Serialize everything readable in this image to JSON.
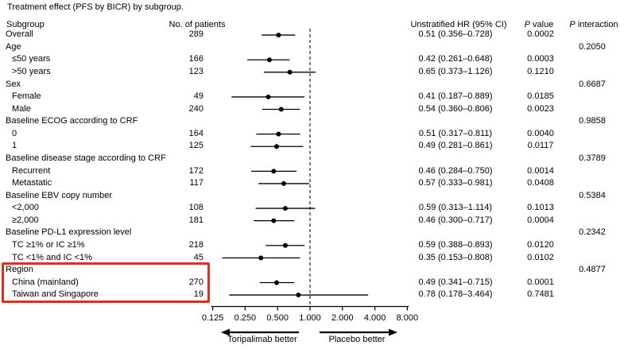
{
  "title": "Treatment effect (PFS by BICR) by subgroup.",
  "columns": {
    "subgroup": "Subgroup",
    "patients": "No. of patients",
    "hr": "Unstratified HR (95% CI)",
    "p_italic": "P",
    "p_value_rest": " value",
    "p_interaction_rest": " interaction"
  },
  "arrows": {
    "left_label": "Toripalimab better",
    "right_label": "Placebo better"
  },
  "highlight": {
    "color": "#e8291d",
    "rows": [
      "Region",
      "China (mainland)",
      "Taiwan and Singapore"
    ]
  },
  "chart_data": {
    "type": "forest",
    "x_scale": "log2",
    "x_ticks": [
      0.125,
      0.25,
      0.5,
      1,
      2,
      4,
      8
    ],
    "x_tick_labels": [
      "0.125",
      "0.250",
      "0.500",
      "1.000",
      "2.000",
      "4.000",
      "8.000"
    ],
    "reference_value": 1.0,
    "marker_color": "#000000",
    "rows": [
      {
        "label": "Overall",
        "indent": false,
        "patients": "289",
        "hr": 0.51,
        "ci_low": 0.356,
        "ci_high": 0.728,
        "hr_ci": "0.51 (0.356–0.728)",
        "p_value": "0.0002",
        "p_interaction": ""
      },
      {
        "label": "Age",
        "indent": false,
        "patients": "",
        "hr": null,
        "ci_low": null,
        "ci_high": null,
        "hr_ci": "",
        "p_value": "",
        "p_interaction": "0.2050"
      },
      {
        "label": "≤50 years",
        "indent": true,
        "patients": "166",
        "hr": 0.42,
        "ci_low": 0.261,
        "ci_high": 0.648,
        "hr_ci": "0.42 (0.261–0.648)",
        "p_value": "0.0003",
        "p_interaction": ""
      },
      {
        "label": ">50 years",
        "indent": true,
        "patients": "123",
        "hr": 0.65,
        "ci_low": 0.373,
        "ci_high": 1.126,
        "hr_ci": "0.65 (0.373–1.126)",
        "p_value": "0.1210",
        "p_interaction": ""
      },
      {
        "label": "Sex",
        "indent": false,
        "patients": "",
        "hr": null,
        "ci_low": null,
        "ci_high": null,
        "hr_ci": "",
        "p_value": "",
        "p_interaction": "0.6687"
      },
      {
        "label": "Female",
        "indent": true,
        "patients": "49",
        "hr": 0.41,
        "ci_low": 0.187,
        "ci_high": 0.889,
        "hr_ci": "0.41 (0.187–0.889)",
        "p_value": "0.0185",
        "p_interaction": ""
      },
      {
        "label": "Male",
        "indent": true,
        "patients": "240",
        "hr": 0.54,
        "ci_low": 0.36,
        "ci_high": 0.806,
        "hr_ci": "0.54 (0.360–0.806)",
        "p_value": "0.0023",
        "p_interaction": ""
      },
      {
        "label": "Baseline ECOG according to CRF",
        "indent": false,
        "patients": "",
        "hr": null,
        "ci_low": null,
        "ci_high": null,
        "hr_ci": "",
        "p_value": "",
        "p_interaction": "0.9858"
      },
      {
        "label": "0",
        "indent": true,
        "patients": "164",
        "hr": 0.51,
        "ci_low": 0.317,
        "ci_high": 0.811,
        "hr_ci": "0.51 (0.317–0.811)",
        "p_value": "0.0040",
        "p_interaction": ""
      },
      {
        "label": "1",
        "indent": true,
        "patients": "125",
        "hr": 0.49,
        "ci_low": 0.281,
        "ci_high": 0.861,
        "hr_ci": "0.49 (0.281–0.861)",
        "p_value": "0.0117",
        "p_interaction": ""
      },
      {
        "label": "Baseline disease stage according to CRF",
        "indent": false,
        "patients": "",
        "hr": null,
        "ci_low": null,
        "ci_high": null,
        "hr_ci": "",
        "p_value": "",
        "p_interaction": "0.3789"
      },
      {
        "label": "Recurrent",
        "indent": true,
        "patients": "172",
        "hr": 0.46,
        "ci_low": 0.284,
        "ci_high": 0.75,
        "hr_ci": "0.46 (0.284–0.750)",
        "p_value": "0.0014",
        "p_interaction": ""
      },
      {
        "label": "Metastatic",
        "indent": true,
        "patients": "117",
        "hr": 0.57,
        "ci_low": 0.333,
        "ci_high": 0.981,
        "hr_ci": "0.57 (0.333–0.981)",
        "p_value": "0.0408",
        "p_interaction": ""
      },
      {
        "label": "Baseline EBV copy number",
        "indent": false,
        "patients": "",
        "hr": null,
        "ci_low": null,
        "ci_high": null,
        "hr_ci": "",
        "p_value": "",
        "p_interaction": "0.5384"
      },
      {
        "label": "<2,000",
        "indent": true,
        "patients": "108",
        "hr": 0.59,
        "ci_low": 0.313,
        "ci_high": 1.114,
        "hr_ci": "0.59 (0.313–1.114)",
        "p_value": "0.1013",
        "p_interaction": ""
      },
      {
        "label": "≥2,000",
        "indent": true,
        "patients": "181",
        "hr": 0.46,
        "ci_low": 0.3,
        "ci_high": 0.717,
        "hr_ci": "0.46 (0.300–0.717)",
        "p_value": "0.0004",
        "p_interaction": ""
      },
      {
        "label": "Baseline PD-L1 expression level",
        "indent": false,
        "patients": "",
        "hr": null,
        "ci_low": null,
        "ci_high": null,
        "hr_ci": "",
        "p_value": "",
        "p_interaction": "0.2342"
      },
      {
        "label": "TC ≥1% or IC ≥1%",
        "indent": true,
        "patients": "218",
        "hr": 0.59,
        "ci_low": 0.388,
        "ci_high": 0.893,
        "hr_ci": "0.59 (0.388–0.893)",
        "p_value": "0.0120",
        "p_interaction": ""
      },
      {
        "label": "TC <1% and IC <1%",
        "indent": true,
        "patients": "45",
        "hr": 0.35,
        "ci_low": 0.153,
        "ci_high": 0.808,
        "hr_ci": "0.35 (0.153–0.808)",
        "p_value": "0.0102",
        "p_interaction": ""
      },
      {
        "label": "Region",
        "indent": false,
        "patients": "",
        "hr": null,
        "ci_low": null,
        "ci_high": null,
        "hr_ci": "",
        "p_value": "",
        "p_interaction": "0.4877"
      },
      {
        "label": "China (mainland)",
        "indent": true,
        "patients": "270",
        "hr": 0.49,
        "ci_low": 0.341,
        "ci_high": 0.715,
        "hr_ci": "0.49 (0.341–0.715)",
        "p_value": "0.0001",
        "p_interaction": ""
      },
      {
        "label": "Taiwan and Singapore",
        "indent": true,
        "patients": "19",
        "hr": 0.78,
        "ci_low": 0.178,
        "ci_high": 3.464,
        "hr_ci": "0.78 (0.178–3.464)",
        "p_value": "0.7481",
        "p_interaction": ""
      }
    ]
  }
}
